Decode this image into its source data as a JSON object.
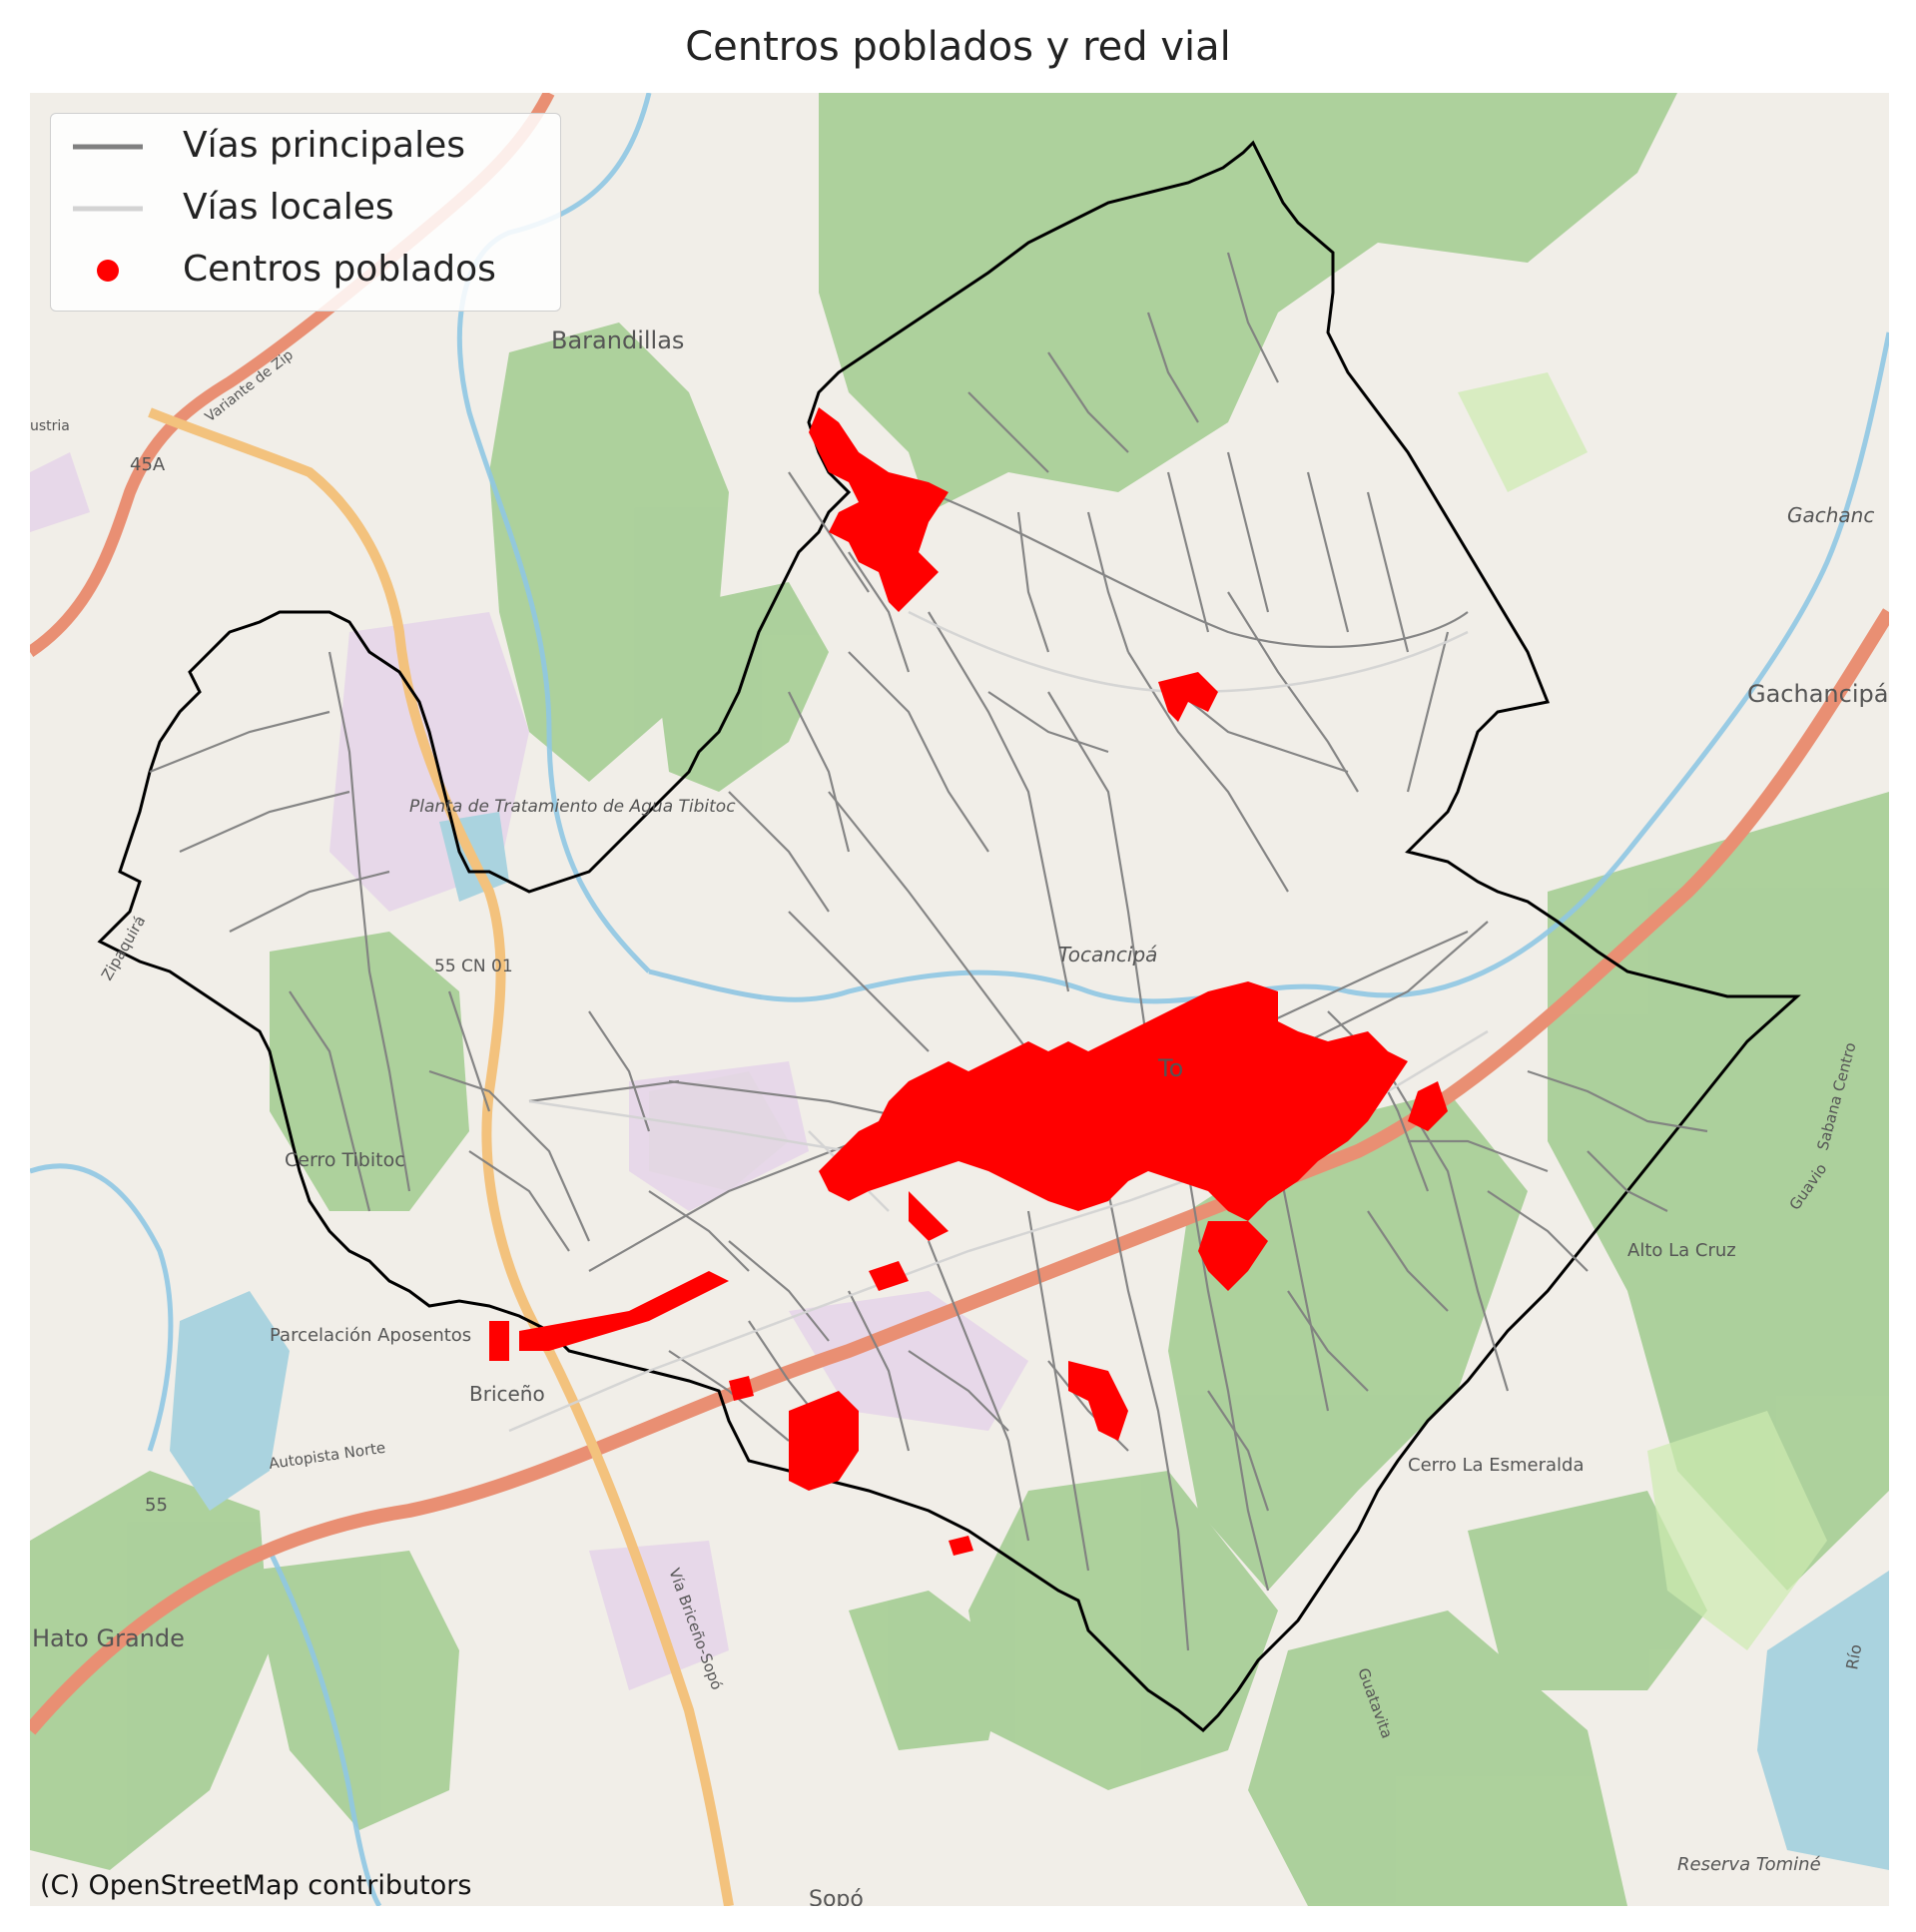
{
  "title": "Centros poblados y red vial",
  "legend": {
    "items": [
      {
        "label": "Vías principales",
        "color": "#808080",
        "kind": "line"
      },
      {
        "label": "Vías locales",
        "color": "#d3d3d3",
        "kind": "line"
      },
      {
        "label": "Centros poblados",
        "color": "#ff0000",
        "kind": "point"
      }
    ]
  },
  "colors": {
    "boundary": "#000000",
    "populated_centers": "#ff0000",
    "main_roads": "#808080",
    "local_roads": "#d3d3d3",
    "forest": "#a9cf98",
    "water": "#aad3df",
    "basemap": "#f1eee8",
    "motorway": "#e98f73",
    "trunk": "#f3c27d"
  },
  "basemap_labels": [
    {
      "text": "Barandillas"
    },
    {
      "text": "45A"
    },
    {
      "text": "Variante de Zip"
    },
    {
      "text": "ustria"
    },
    {
      "text": "Planta de Tratamiento de Agua Tibitoc"
    },
    {
      "text": "55 CN 01"
    },
    {
      "text": "Cerro Tibitoc"
    },
    {
      "text": "Parcelación Aposentos"
    },
    {
      "text": "Briceño"
    },
    {
      "text": "Autopista Norte"
    },
    {
      "text": "55"
    },
    {
      "text": "Hato Grande"
    },
    {
      "text": "Vía Briceño-Sopó"
    },
    {
      "text": "Sopó"
    },
    {
      "text": "Tocancipá"
    },
    {
      "text": "To"
    },
    {
      "text": "Gachancipá"
    },
    {
      "text": "Gachanc"
    },
    {
      "text": "Alto La Cruz"
    },
    {
      "text": "Cerro La Esmeralda"
    },
    {
      "text": "Reserva Tominé"
    },
    {
      "text": "Guavio"
    },
    {
      "text": "Sabana Centro"
    },
    {
      "text": "Guatavita"
    },
    {
      "text": "Zipaquirá"
    },
    {
      "text": "Río"
    }
  ],
  "attribution": "(C) OpenStreetMap contributors"
}
